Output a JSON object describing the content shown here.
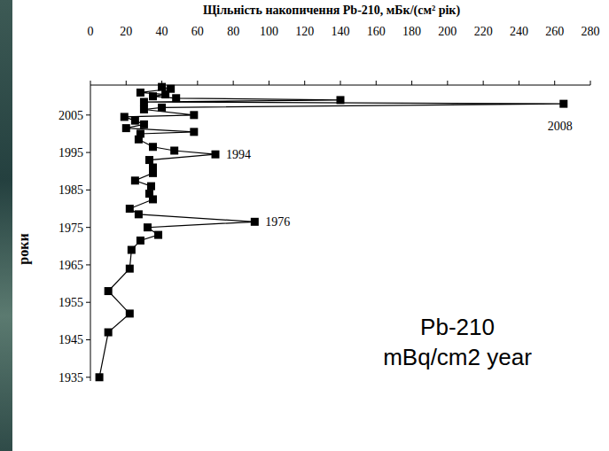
{
  "chart_data": {
    "type": "line",
    "title": "Щільність накопичення Pb-210, мБк/(см² рік)",
    "y_label": "роки",
    "caption": [
      "Pb-210",
      "mBq/cm2 year"
    ],
    "x": [
      5,
      10,
      22,
      10,
      22,
      23,
      28,
      38,
      32,
      92,
      27,
      22,
      35,
      33,
      34,
      25,
      35,
      35,
      33,
      70,
      47,
      35,
      27,
      28,
      58,
      20,
      30,
      25,
      19,
      58,
      30,
      40,
      265,
      30,
      140,
      48,
      35,
      42,
      28,
      45,
      40
    ],
    "values": [
      1935,
      1947,
      1952,
      1958,
      1964,
      1969,
      1971.5,
      1973,
      1975,
      1976.5,
      1978.5,
      1980,
      1982.5,
      1984,
      1986,
      1987.5,
      1989.5,
      1991,
      1993,
      1994.5,
      1995.5,
      1996.5,
      1998.5,
      2000,
      2000.5,
      2001.5,
      2002.5,
      2003.5,
      2004.5,
      2005,
      2006.5,
      2007,
      2008,
      2008.5,
      2009,
      2009.5,
      2010,
      2010.5,
      2011,
      2012,
      2012.5
    ],
    "xlim": [
      0,
      280
    ],
    "xticks": [
      0,
      20,
      40,
      60,
      80,
      100,
      120,
      140,
      160,
      180,
      200,
      220,
      240,
      260,
      280
    ],
    "ylim": [
      1934,
      2013
    ],
    "yticks": [
      1935,
      1945,
      1955,
      1965,
      1975,
      1985,
      1995,
      2005
    ],
    "color": "#000000",
    "marker": "square",
    "line_style": "solid",
    "grid": false,
    "annotations": [
      {
        "text": "2008",
        "x": 265,
        "y": 2008
      },
      {
        "text": "1994",
        "x": 70,
        "y": 1994.5
      },
      {
        "text": "1976",
        "x": 92,
        "y": 1976.5
      }
    ]
  }
}
